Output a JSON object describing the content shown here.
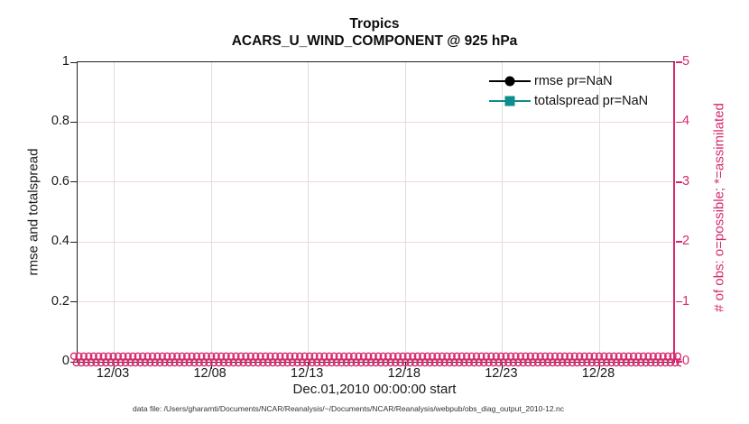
{
  "figure": {
    "title_line1": "Tropics",
    "title_line2": "ACARS_U_WIND_COMPONENT @ 925 hPa",
    "xlabel": "Dec.01,2010 00:00:00 start",
    "ylabel_left": "rmse and totalspread",
    "ylabel_right": "# of obs: o=possible; *=assimilated",
    "footer": "data file: /Users/gharamti/Documents/NCAR/Reanalysis/~/Documents/NCAR/Reanalysis/webpub/obs_diag_output_2010-12.nc"
  },
  "legend": {
    "items": [
      {
        "label": "rmse pr=NaN",
        "color": "#000000",
        "marker": "circle"
      },
      {
        "label": "totalspread pr=NaN",
        "color": "#0d8d8d",
        "marker": "square"
      }
    ]
  },
  "colors": {
    "right_axis_pink": "#d62a6e",
    "pink_gridline": "#f7d3e0",
    "gray_gridline": "#dedede",
    "axis_black": "#1f1f1f",
    "totalspread_teal": "#0d8d8d"
  },
  "chart_data": {
    "type": "line",
    "title": "Tropics",
    "subtitle": "ACARS_U_WIND_COMPONENT @ 925 hPa",
    "xlabel": "Dec.01,2010 00:00:00 start",
    "x_tick_labels": [
      "12/03",
      "12/08",
      "12/13",
      "12/18",
      "12/23",
      "12/28"
    ],
    "x_range": "Dec 01 2010 through end of December 2010",
    "left_axis": {
      "label": "rmse and totalspread",
      "ticks": [
        "0",
        "0.2",
        "0.4",
        "0.6",
        "0.8",
        "1"
      ],
      "lim": [
        0,
        1
      ],
      "color": "#1a1a1a"
    },
    "right_axis": {
      "label": "# of obs: o=possible; *=assimilated",
      "ticks": [
        "0",
        "1",
        "2",
        "3",
        "4",
        "5"
      ],
      "lim": [
        0,
        5
      ],
      "color": "#d62a6e"
    },
    "grid": true,
    "legend_position": "upper-right-inside",
    "series": [
      {
        "name": "rmse pr=NaN",
        "color": "#000000",
        "marker": "filled-circle",
        "values": [],
        "note": "NaN - no curve plotted"
      },
      {
        "name": "totalspread pr=NaN",
        "color": "#0d8d8d",
        "marker": "filled-square",
        "values": [],
        "note": "NaN - no curve plotted"
      },
      {
        "name": "possible observation count (o markers)",
        "color": "#d62a6e",
        "marker": "o",
        "constant_value": 0
      },
      {
        "name": "assimilated observation count (* markers)",
        "color": "#d62a6e",
        "marker": "*",
        "constant_value": 0
      }
    ],
    "obs_band": {
      "rows": 2,
      "markers_per_row": 124,
      "value": 0
    }
  }
}
